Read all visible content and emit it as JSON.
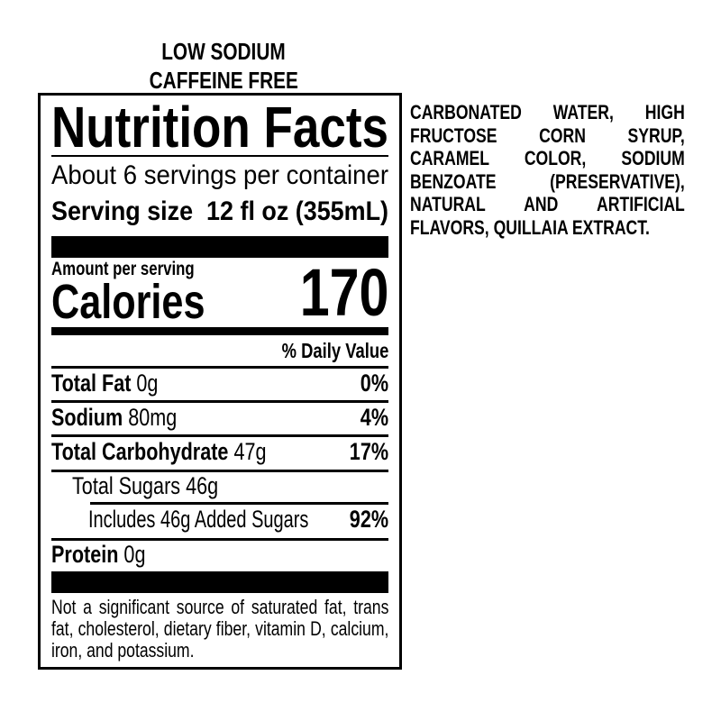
{
  "claims": [
    "LOW SODIUM",
    "CAFFEINE FREE"
  ],
  "label": {
    "title": "Nutrition Facts",
    "servings": "About 6 servings per container",
    "serving_size_label": "Serving size",
    "serving_size_value": "12 fl oz (355mL)",
    "amount_per_serving": "Amount per serving",
    "calories_label": "Calories",
    "calories_value": "170",
    "daily_value_header": "% Daily Value",
    "nutrients": [
      {
        "name": "Total Fat",
        "amount": "0g",
        "dv": "0%"
      },
      {
        "name": "Sodium",
        "amount": "80mg",
        "dv": "4%"
      },
      {
        "name": "Total Carbohydrate",
        "amount": "47g",
        "dv": "17%"
      },
      {
        "name": "Total Sugars 46g",
        "amount": "",
        "dv": ""
      },
      {
        "name": "Includes 46g Added Sugars",
        "amount": "",
        "dv": "92%"
      },
      {
        "name": "Protein",
        "amount": "0g",
        "dv": ""
      }
    ],
    "footnote": "Not a significant source of saturated fat, trans fat, cholesterol, dietary fiber, vitamin D, calcium, iron, and potassium."
  },
  "ingredients": "CARBONATED WATER, HIGH FRUCTOSE CORN SYRUP, CARAMEL COLOR, SODIUM BENZOATE (PRESERVATIVE), NATURAL AND ARTIFICIAL FLAVORS, QUILLAIA EXTRACT."
}
